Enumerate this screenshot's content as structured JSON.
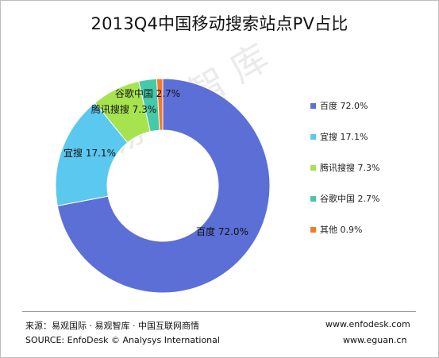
{
  "title": "2013Q4中国移动搜索站点PV占比",
  "watermark": "易观智库",
  "chart_data": {
    "type": "pie",
    "variant": "donut",
    "title": "2013Q4中国移动搜索站点PV占比",
    "slices": [
      {
        "label": "百度",
        "value": 72.0,
        "value_label": "72.0%",
        "color": "#5b6fd6"
      },
      {
        "label": "宜搜",
        "value": 17.1,
        "value_label": "17.1%",
        "color": "#5bc8f0"
      },
      {
        "label": "腾讯搜搜",
        "value": 7.3,
        "value_label": "7.3%",
        "color": "#a6e34e"
      },
      {
        "label": "谷歌中国",
        "value": 2.7,
        "value_label": "2.7%",
        "color": "#45c9a8"
      },
      {
        "label": "其他",
        "value": 0.9,
        "value_label": "0.9%",
        "color": "#f47a2a"
      }
    ],
    "legend_position": "right"
  },
  "footer": {
    "source_cn": "来源：易观国际 · 易观智库 · 中国互联网商情",
    "source_en": "SOURCE: EnfoDesk © Analysys International",
    "url1": "www.enfodesk.com",
    "url2": "www.eguan.cn"
  }
}
